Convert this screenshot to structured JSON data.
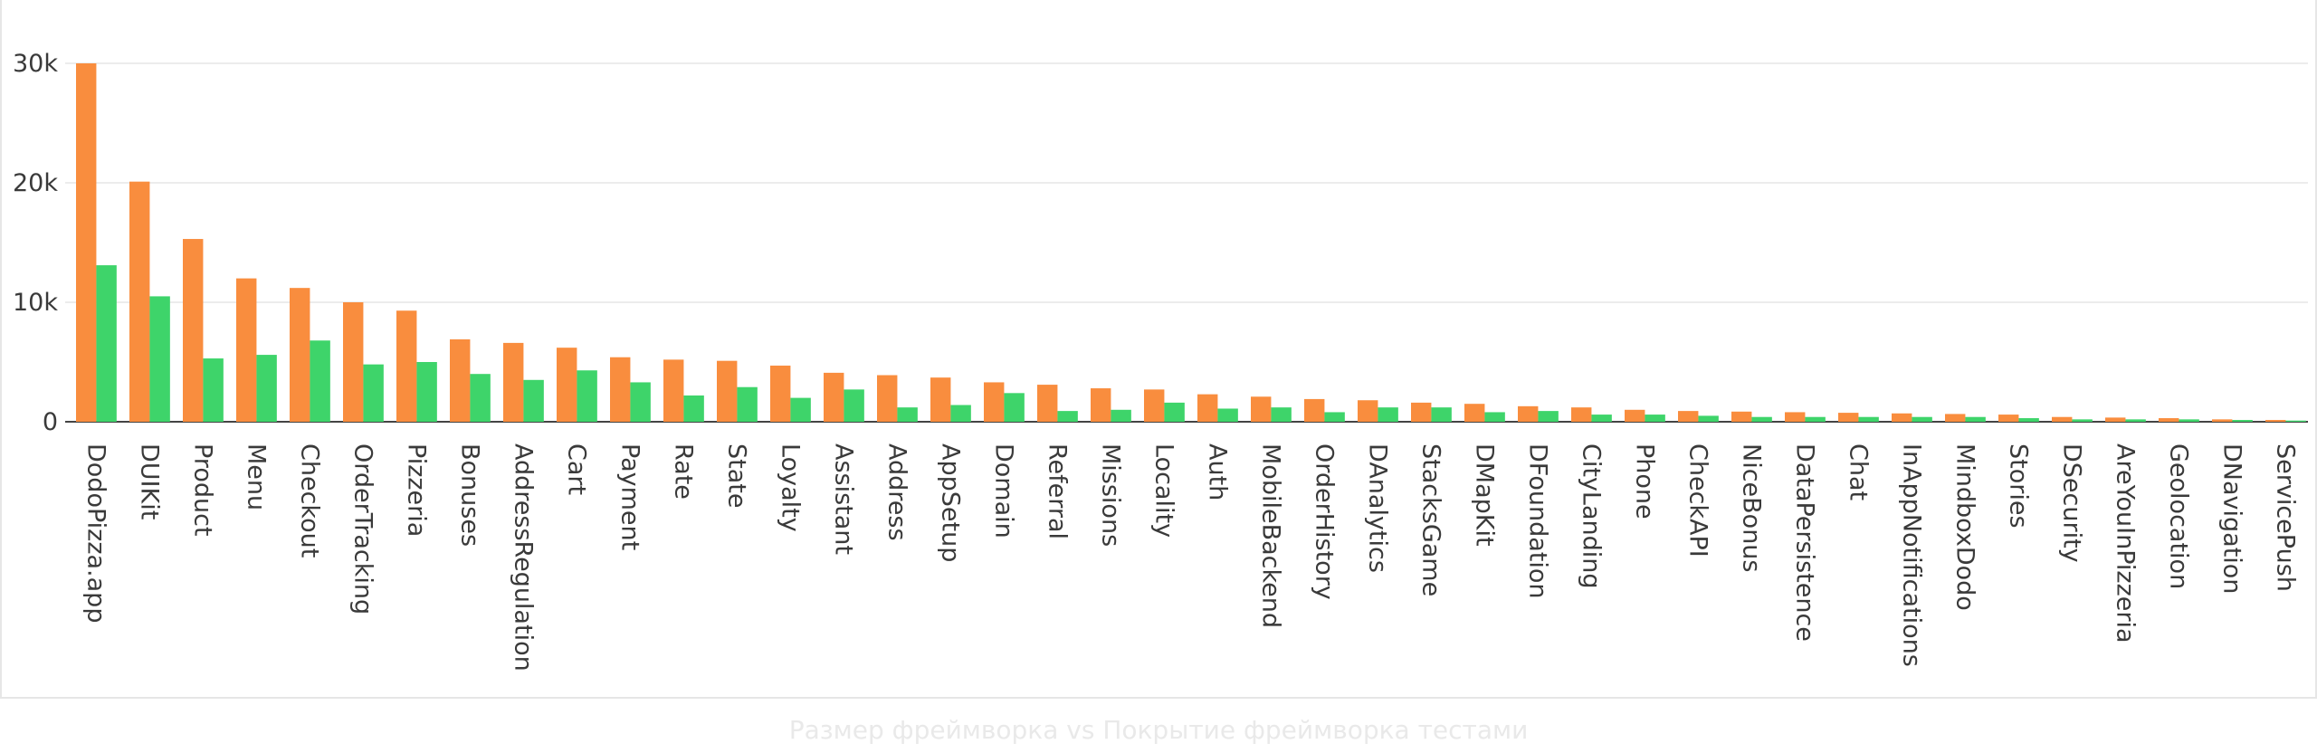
{
  "chart_data": {
    "type": "bar",
    "title": "",
    "xlabel": "",
    "ylabel": "",
    "ylim": [
      0,
      30000
    ],
    "yticks": [
      0,
      10000,
      20000,
      30000
    ],
    "ytick_labels": [
      "0",
      "10k",
      "20k",
      "30k"
    ],
    "grid": true,
    "colors": [
      "#f98d3e",
      "#3ed46a"
    ],
    "categories": [
      "DodoPizza.app",
      "DUIKit",
      "Product",
      "Menu",
      "Checkout",
      "OrderTracking",
      "Pizzeria",
      "Bonuses",
      "AddressRegulation",
      "Cart",
      "Payment",
      "Rate",
      "State",
      "Loyalty",
      "Assistant",
      "Address",
      "AppSetup",
      "Domain",
      "Referral",
      "Missions",
      "Locality",
      "Auth",
      "MobileBackend",
      "OrderHistory",
      "DAnalytics",
      "StacksGame",
      "DMapKit",
      "DFoundation",
      "CityLanding",
      "Phone",
      "CheckAPI",
      "NiceBonus",
      "DataPersistence",
      "Chat",
      "InAppNotifications",
      "MindboxDodo",
      "Stories",
      "DSecurity",
      "AreYouInPizzeria",
      "Geolocation",
      "DNavigation",
      "ServicePush"
    ],
    "series": [
      {
        "values": [
          30000,
          20100,
          15300,
          12000,
          11200,
          10000,
          9300,
          6900,
          6600,
          6200,
          5400,
          5200,
          5100,
          4700,
          4100,
          3900,
          3700,
          3300,
          3100,
          2800,
          2700,
          2300,
          2100,
          1900,
          1800,
          1600,
          1500,
          1300,
          1200,
          1000,
          900,
          850,
          800,
          750,
          700,
          650,
          600,
          400,
          350,
          300,
          200,
          150
        ]
      },
      {
        "values": [
          13100,
          10500,
          5300,
          5600,
          6800,
          4800,
          5000,
          4000,
          3500,
          4300,
          3300,
          2200,
          2900,
          2000,
          2700,
          1200,
          1400,
          2400,
          900,
          1000,
          1600,
          1100,
          1200,
          800,
          1200,
          1200,
          800,
          900,
          600,
          600,
          500,
          400,
          400,
          400,
          400,
          400,
          300,
          200,
          200,
          200,
          150,
          100
        ]
      }
    ]
  },
  "caption": "Размер фреймворка vs Покрытие фреймворка тестами"
}
